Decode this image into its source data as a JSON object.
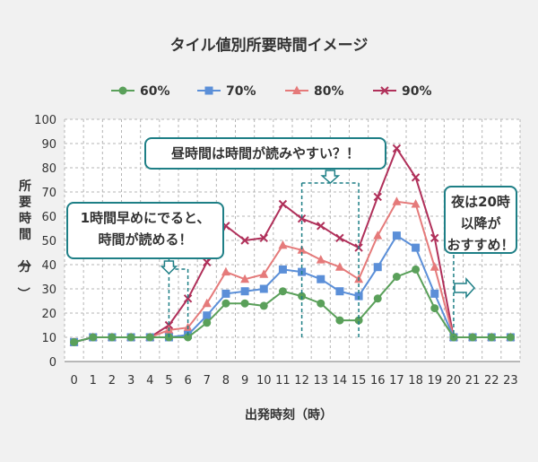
{
  "chart_data": {
    "type": "line",
    "title": "タイル値別所要時間イメージ",
    "xlabel": "出発時刻（時）",
    "ylabel": "所要時間（分）",
    "categories": [
      "0",
      "1",
      "2",
      "3",
      "4",
      "5",
      "6",
      "7",
      "8",
      "9",
      "10",
      "11",
      "12",
      "13",
      "14",
      "15",
      "16",
      "17",
      "18",
      "19",
      "20",
      "21",
      "22",
      "23"
    ],
    "ylim": [
      0,
      100
    ],
    "yticks": [
      0,
      10,
      20,
      30,
      40,
      50,
      60,
      70,
      80,
      90,
      100
    ],
    "grid": true,
    "legend_position": "top",
    "series": [
      {
        "name": "60%",
        "color": "#5aa05a",
        "marker": "circle",
        "values": [
          8,
          10,
          10,
          10,
          10,
          10,
          10,
          16,
          24,
          24,
          23,
          29,
          27,
          24,
          17,
          17,
          26,
          35,
          38,
          22,
          10,
          10,
          10,
          10
        ]
      },
      {
        "name": "70%",
        "color": "#5b8fd8",
        "marker": "square",
        "values": [
          8,
          10,
          10,
          10,
          10,
          10,
          11,
          19,
          28,
          29,
          30,
          38,
          37,
          34,
          29,
          27,
          39,
          52,
          47,
          28,
          10,
          10,
          10,
          10
        ]
      },
      {
        "name": "80%",
        "color": "#e57a7a",
        "marker": "triangle",
        "values": [
          8,
          10,
          10,
          10,
          10,
          13,
          14,
          24,
          37,
          34,
          36,
          48,
          46,
          42,
          39,
          34,
          52,
          66,
          65,
          39,
          10,
          10,
          10,
          10
        ]
      },
      {
        "name": "90%",
        "color": "#b0305a",
        "marker": "x",
        "values": [
          8,
          10,
          10,
          10,
          10,
          15,
          26,
          41,
          56,
          50,
          51,
          65,
          59,
          56,
          51,
          47,
          68,
          88,
          76,
          51,
          10,
          10,
          10,
          10
        ]
      }
    ],
    "annotations": [
      {
        "id": "early",
        "text_lines": [
          "1時間早めにでると、",
          "時間が読める！"
        ]
      },
      {
        "id": "daytime",
        "text_lines": [
          "昼時間は時間が読みやすい？！"
        ]
      },
      {
        "id": "night",
        "text_lines": [
          "夜は20時",
          "以降が",
          "おすすめ！"
        ]
      }
    ]
  }
}
